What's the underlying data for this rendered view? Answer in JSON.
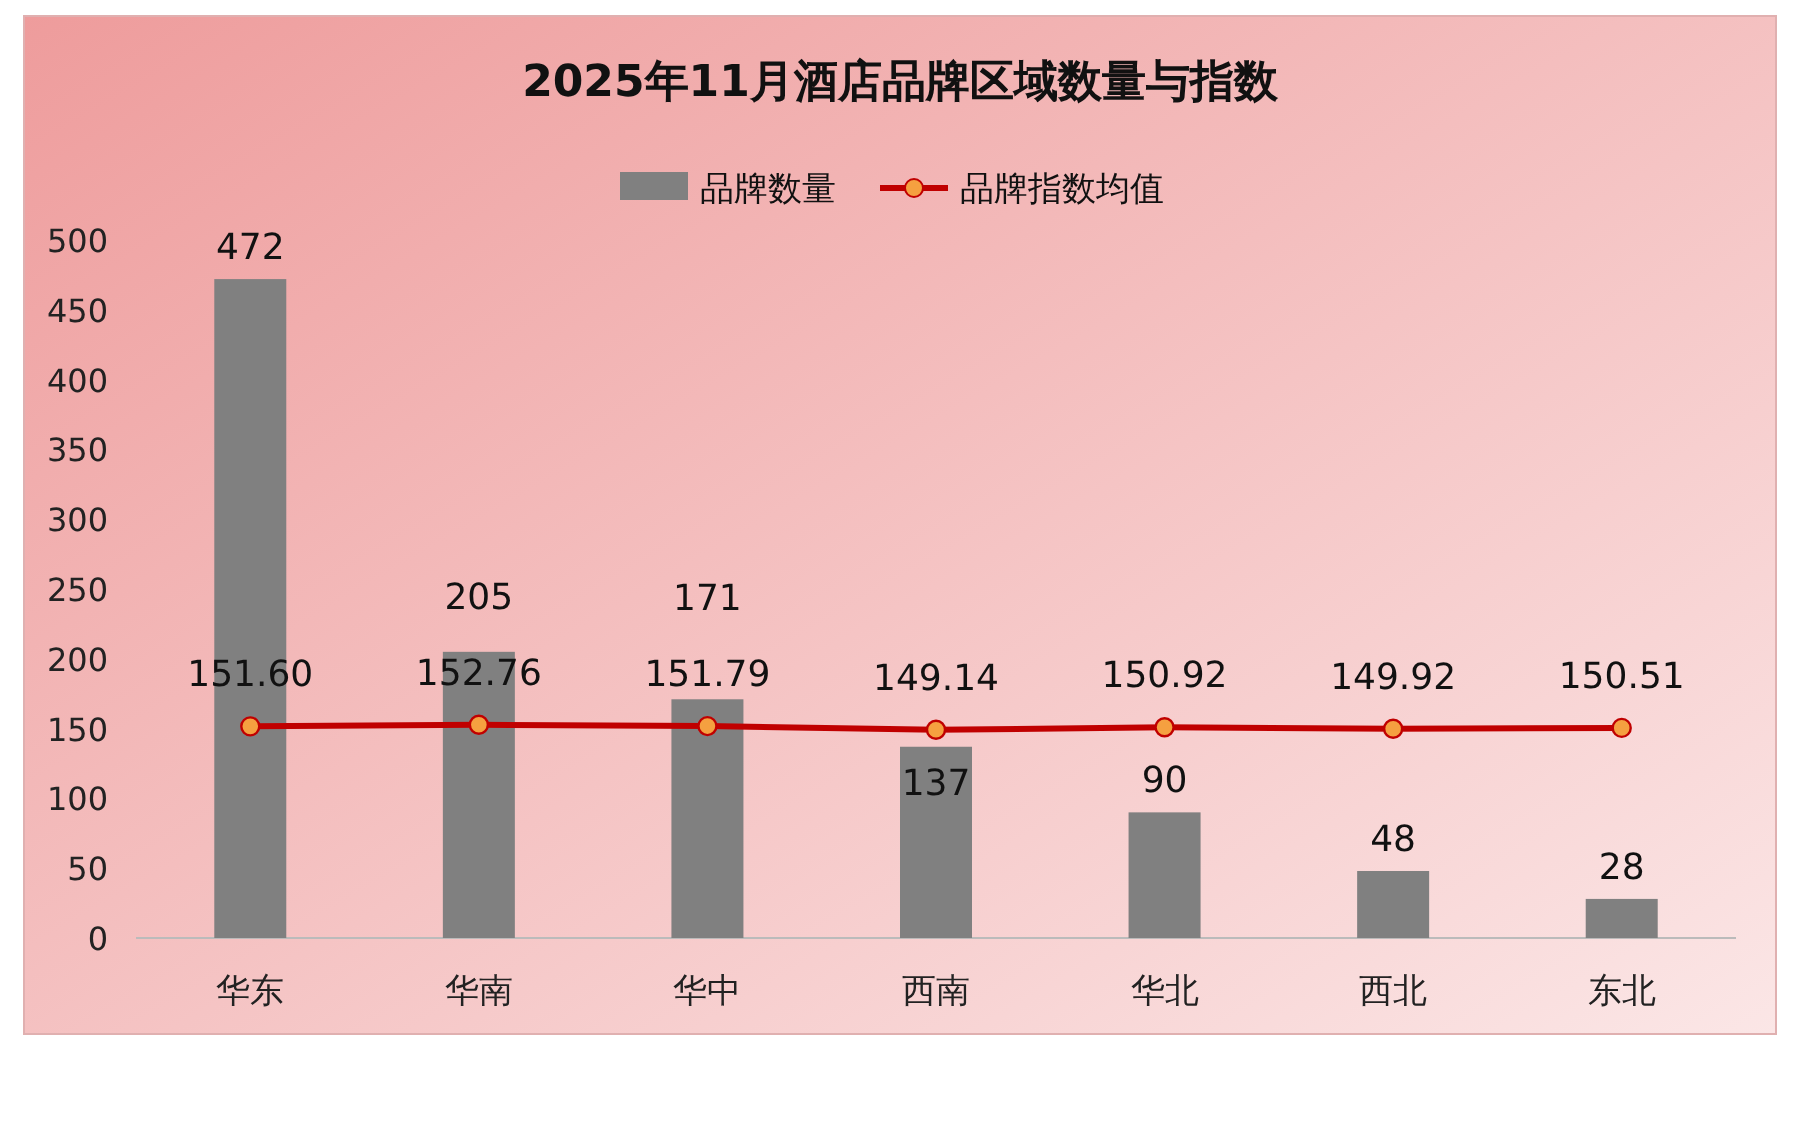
{
  "chart_data": {
    "type": "bar",
    "title": "2025年11月酒店品牌区域数量与指数",
    "categories": [
      "华东",
      "华南",
      "华中",
      "西南",
      "华北",
      "西北",
      "东北"
    ],
    "series": [
      {
        "name": "品牌数量",
        "color": "#808080",
        "values": [
          472,
          205,
          171,
          137,
          90,
          48,
          28
        ],
        "value_labels": [
          "472",
          "205",
          "171",
          "137",
          "90",
          "48",
          "28"
        ]
      },
      {
        "name": "品牌指数均值",
        "type": "line",
        "color": "#c00000",
        "marker": "circle",
        "line_style": "solid",
        "values": [
          151.6,
          152.76,
          151.79,
          149.14,
          150.92,
          149.92,
          150.51
        ],
        "value_labels": [
          "151.60",
          "152.76",
          "151.79",
          "149.14",
          "150.92",
          "149.92",
          "150.51"
        ]
      }
    ],
    "ylim": [
      0,
      500
    ],
    "yticks": [
      0,
      50,
      100,
      150,
      200,
      250,
      300,
      350,
      400,
      450,
      500
    ],
    "grid": false,
    "legend": "top"
  }
}
